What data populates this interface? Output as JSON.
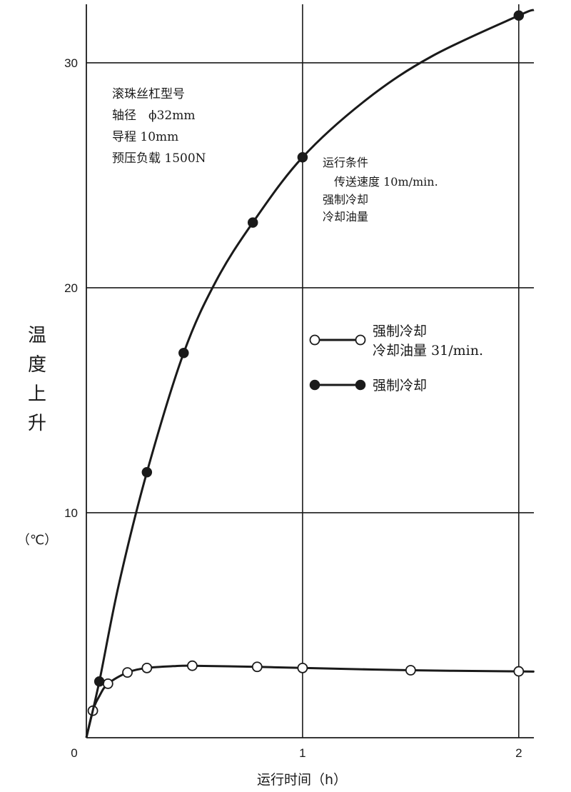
{
  "chart_data": {
    "type": "line",
    "xlabel": "运行时间（h）",
    "ylabel_chars": [
      "温",
      "度",
      "上",
      "升"
    ],
    "yunit": "（℃）",
    "xlim": [
      0,
      2.07
    ],
    "ylim": [
      0,
      32.6
    ],
    "x_ticks": [
      {
        "value": 0,
        "label": "0"
      },
      {
        "value": 1,
        "label": "1"
      },
      {
        "value": 2,
        "label": "2"
      }
    ],
    "y_ticks": [
      {
        "value": 10,
        "label": "10"
      },
      {
        "value": 20,
        "label": "20"
      },
      {
        "value": 30,
        "label": "30"
      }
    ],
    "grid": true,
    "series": [
      {
        "name_lines": [
          "强制冷却",
          "冷却油量 31/min."
        ],
        "marker": "open-circle",
        "points": [
          [
            0.03,
            1.2
          ],
          [
            0.1,
            2.4
          ],
          [
            0.19,
            2.9
          ],
          [
            0.28,
            3.1
          ],
          [
            0.49,
            3.2
          ],
          [
            0.79,
            3.15
          ],
          [
            1.0,
            3.1
          ],
          [
            1.5,
            3.0
          ],
          [
            2.0,
            2.95
          ]
        ],
        "curve": [
          [
            0,
            0
          ],
          [
            0.03,
            1.2
          ],
          [
            0.06,
            1.85
          ],
          [
            0.1,
            2.4
          ],
          [
            0.19,
            2.9
          ],
          [
            0.28,
            3.1
          ],
          [
            0.4,
            3.18
          ],
          [
            0.49,
            3.2
          ],
          [
            0.79,
            3.15
          ],
          [
            1.0,
            3.1
          ],
          [
            1.5,
            3.0
          ],
          [
            2.0,
            2.95
          ],
          [
            2.07,
            2.94
          ]
        ]
      },
      {
        "name_lines": [
          "强制冷却"
        ],
        "marker": "filled-circle",
        "points": [
          [
            0.06,
            2.5
          ],
          [
            0.28,
            11.8
          ],
          [
            0.45,
            17.1
          ],
          [
            0.77,
            22.9
          ],
          [
            1.0,
            25.8
          ],
          [
            2.0,
            32.1
          ]
        ],
        "curve": [
          [
            0,
            0
          ],
          [
            0.06,
            2.5
          ],
          [
            0.15,
            6.8
          ],
          [
            0.28,
            11.8
          ],
          [
            0.45,
            17.1
          ],
          [
            0.6,
            20.3
          ],
          [
            0.77,
            22.9
          ],
          [
            1.0,
            25.8
          ],
          [
            1.3,
            28.4
          ],
          [
            1.6,
            30.3
          ],
          [
            2.0,
            32.1
          ],
          [
            2.07,
            32.35
          ]
        ]
      }
    ],
    "annotations": {
      "ball_screw": [
        "滚珠丝杠型号",
        "轴径　ϕ32mm",
        "导程 10mm",
        "预压负载 1500N"
      ],
      "conditions": [
        "运行条件",
        "　传送速度 10m/min.",
        "强制冷却",
        "冷却油量"
      ]
    },
    "legend_position": "center-right"
  }
}
